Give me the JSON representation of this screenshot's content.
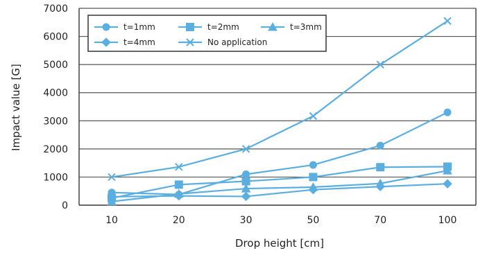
{
  "chart_data": {
    "type": "line",
    "title": "",
    "xlabel": "Drop height [cm]",
    "ylabel": "Impact value [G]",
    "categories": [
      "10",
      "20",
      "30",
      "50",
      "70",
      "100"
    ],
    "ylim": [
      0,
      7000
    ],
    "yticks": [
      "0",
      "1000",
      "2000",
      "3000",
      "4000",
      "5000",
      "6000",
      "7000"
    ],
    "grid": "horizontal",
    "legend_position": "top-left",
    "series_color": "#5aaee0",
    "series": [
      {
        "name": "t=1mm",
        "marker": "circle",
        "values": [
          450,
          380,
          1100,
          1430,
          2120,
          3300
        ]
      },
      {
        "name": "t=2mm",
        "marker": "square",
        "values": [
          250,
          730,
          850,
          1000,
          1350,
          1370
        ]
      },
      {
        "name": "t=3mm",
        "marker": "triangle",
        "values": [
          130,
          400,
          590,
          640,
          770,
          1230
        ]
      },
      {
        "name": "t=4mm",
        "marker": "diamond",
        "values": [
          300,
          330,
          310,
          550,
          660,
          760
        ]
      },
      {
        "name": "No application",
        "marker": "x",
        "values": [
          1000,
          1360,
          2000,
          3170,
          5000,
          6550
        ]
      }
    ]
  }
}
